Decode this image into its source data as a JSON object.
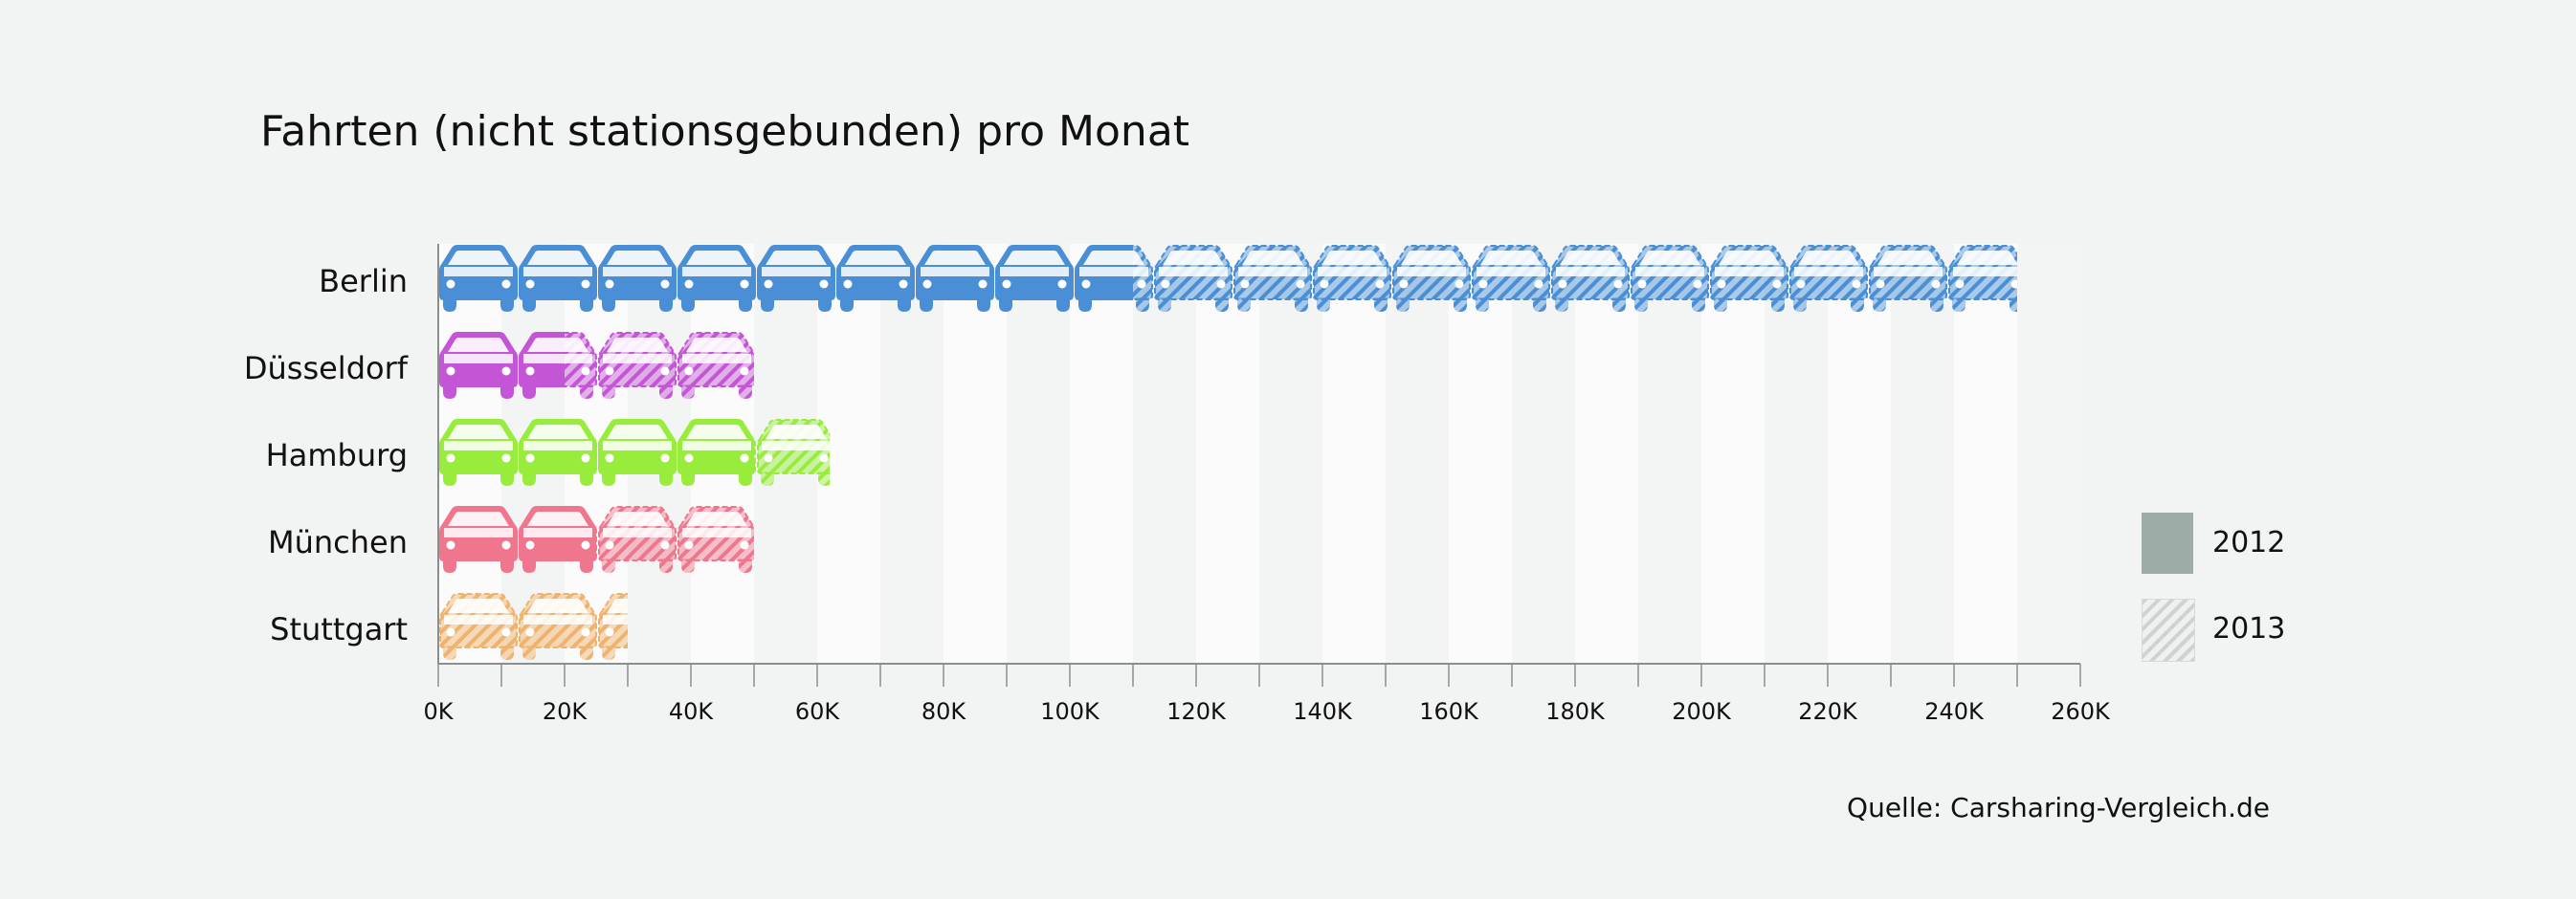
{
  "chart_data": {
    "type": "bar",
    "title": "Fahrten (nicht stationsgebunden) pro Monat",
    "categories": [
      "Berlin",
      "Düsseldorf",
      "Hamburg",
      "München",
      "Stuttgart"
    ],
    "series": [
      {
        "name": "2012",
        "values": [
          110000,
          20000,
          50000,
          25000,
          0
        ]
      },
      {
        "name": "2013",
        "values": [
          250000,
          50000,
          62000,
          50000,
          30000
        ]
      }
    ],
    "category_colors": [
      "#4a8fd6",
      "#c455d6",
      "#98ed3c",
      "#f0768e",
      "#f0b26c"
    ],
    "xlim": [
      0,
      260000
    ],
    "x_ticks": [
      "0K",
      "20K",
      "40K",
      "60K",
      "80K",
      "100K",
      "120K",
      "140K",
      "160K",
      "180K",
      "200K",
      "220K",
      "240K",
      "260K"
    ],
    "icon": "car-icon",
    "legend_position": "right",
    "source": "Quelle: Carsharing-Vergleich.de"
  }
}
